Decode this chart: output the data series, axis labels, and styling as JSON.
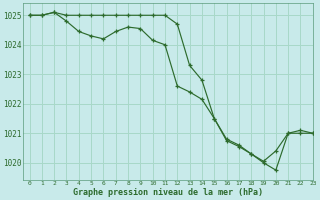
{
  "line1_x": [
    0,
    1,
    2,
    3,
    4,
    5,
    6,
    7,
    8,
    9,
    10,
    11,
    12,
    13,
    14,
    15,
    16,
    17,
    18,
    19,
    20,
    21,
    22,
    23
  ],
  "line1_y": [
    1025.0,
    1025.0,
    1025.1,
    1025.0,
    1025.0,
    1025.0,
    1025.0,
    1025.0,
    1025.0,
    1025.0,
    1025.0,
    1025.0,
    1024.7,
    1023.3,
    1022.8,
    1021.5,
    1020.8,
    1020.6,
    1020.3,
    1020.05,
    1020.4,
    1021.0,
    1021.0,
    1021.0
  ],
  "line2_x": [
    0,
    1,
    2,
    3,
    4,
    5,
    6,
    7,
    8,
    9,
    10,
    11,
    12,
    13,
    14,
    15,
    16,
    17,
    18,
    19,
    20,
    21,
    22,
    23
  ],
  "line2_y": [
    1025.0,
    1025.0,
    1025.1,
    1024.8,
    1024.45,
    1024.3,
    1024.2,
    1024.45,
    1024.6,
    1024.55,
    1024.15,
    1024.0,
    1022.6,
    1022.4,
    1022.15,
    1021.5,
    1020.75,
    1020.55,
    1020.3,
    1020.0,
    1019.75,
    1021.0,
    1021.1,
    1021.0
  ],
  "bg_color": "#c8eaea",
  "grid_color": "#a8d8c8",
  "line_color": "#2d6b2d",
  "xlabel": "Graphe pression niveau de la mer (hPa)",
  "xlim": [
    -0.5,
    23
  ],
  "ylim": [
    1019.4,
    1025.4
  ],
  "yticks": [
    1020,
    1021,
    1022,
    1023,
    1024,
    1025
  ],
  "xticks": [
    0,
    1,
    2,
    3,
    4,
    5,
    6,
    7,
    8,
    9,
    10,
    11,
    12,
    13,
    14,
    15,
    16,
    17,
    18,
    19,
    20,
    21,
    22,
    23
  ]
}
